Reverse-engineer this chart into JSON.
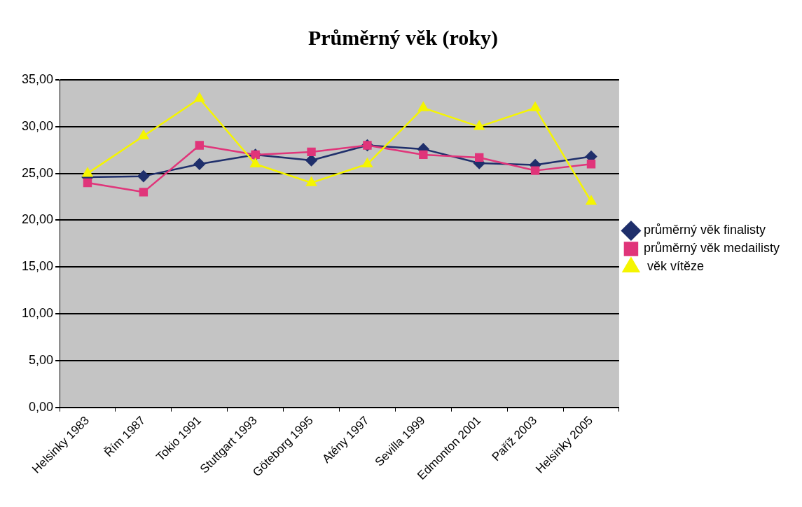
{
  "chart_data": {
    "type": "line",
    "title": "Průměrný věk (roky)",
    "categories": [
      "Helsinky 1983",
      "Řím 1987",
      "Tokio 1991",
      "Stuttgart 1993",
      "Göteborg 1995",
      "Atény 1997",
      "Sevilla 1999",
      "Edmonton 2001",
      "Paříž 2003",
      "Helsinky 2005"
    ],
    "series": [
      {
        "name": "průměrný věk finalisty",
        "color": "#1f2f6b",
        "marker": "diamond",
        "values": [
          24.6,
          24.7,
          26,
          27,
          26.4,
          28,
          27.6,
          26.1,
          25.9,
          26.8
        ]
      },
      {
        "name": "průměrný věk medailisty",
        "color": "#e0357a",
        "marker": "square",
        "values": [
          24,
          23,
          28,
          27,
          27.3,
          28,
          27,
          26.7,
          25.3,
          26
        ]
      },
      {
        "name": " věk vítěze",
        "color": "#f5f500",
        "marker": "triangle",
        "values": [
          25,
          29,
          33,
          26,
          24,
          26,
          32,
          30,
          32,
          22
        ]
      }
    ],
    "ylim": [
      0,
      35
    ],
    "yticks": [
      {
        "value": 0,
        "label": "0,00"
      },
      {
        "value": 5,
        "label": "5,00"
      },
      {
        "value": 10,
        "label": "10,00"
      },
      {
        "value": 15,
        "label": "15,00"
      },
      {
        "value": 20,
        "label": "20,00"
      },
      {
        "value": 25,
        "label": "25,00"
      },
      {
        "value": 30,
        "label": "30,00"
      },
      {
        "value": 35,
        "label": "35,00"
      }
    ],
    "grid": "y",
    "legend": "right",
    "line_style": "solid"
  }
}
